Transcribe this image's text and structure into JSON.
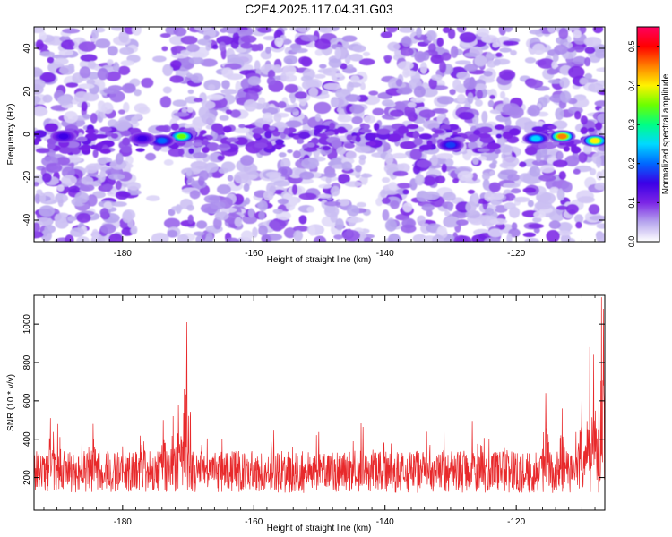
{
  "figure": {
    "title": "C2E4.2025.117.04.31.G03"
  },
  "chart_data": [
    {
      "type": "heatmap",
      "title": "C2E4.2025.117.04.31.G03",
      "xlabel": "Height of straight line (km)",
      "ylabel": "Frequency (Hz)",
      "xlim": [
        -193.5,
        -106.5
      ],
      "ylim": [
        -50,
        50
      ],
      "xticks": [
        -180,
        -160,
        -140,
        -120
      ],
      "yticks": [
        -40,
        -20,
        0,
        20,
        40
      ],
      "colorbar": {
        "label": "Normalized spectral amplitude",
        "range": [
          0,
          0.55
        ],
        "ticks": [
          0.0,
          0.1,
          0.2,
          0.3,
          0.4,
          0.5
        ],
        "colors": [
          "#ffffff",
          "#b7a6ee",
          "#7b25e6",
          "#3b00e6",
          "#0068ff",
          "#00d9ff",
          "#00ff84",
          "#6bff00",
          "#fff200",
          "#ff7f00",
          "#ff0000",
          "#ff0060"
        ]
      },
      "hotspots": [
        {
          "x": -171,
          "y": -1,
          "value": 0.35
        },
        {
          "x": -174,
          "y": -3,
          "value": 0.2
        },
        {
          "x": -177,
          "y": -2,
          "value": 0.15
        },
        {
          "x": -113,
          "y": -1,
          "value": 0.45
        },
        {
          "x": -108,
          "y": -3,
          "value": 0.4
        },
        {
          "x": -117,
          "y": -2,
          "value": 0.25
        },
        {
          "x": -130,
          "y": -5,
          "value": 0.18
        },
        {
          "x": -189,
          "y": -1,
          "value": 0.15
        }
      ]
    },
    {
      "type": "line",
      "xlabel": "Height of straight line (km)",
      "ylabel": "SNR (10 * v/v)",
      "xlim": [
        -193.5,
        -106.5
      ],
      "ylim": [
        30,
        1150
      ],
      "xticks": [
        -180,
        -160,
        -140,
        -120
      ],
      "yticks": [
        200,
        400,
        600,
        800,
        1000
      ],
      "color": "#e8292b",
      "baseline": 230,
      "noise_amplitude": 110,
      "x_step": 0.05,
      "peaks": [
        {
          "x": -170.2,
          "y": 1010
        },
        {
          "x": -170.6,
          "y": 660
        },
        {
          "x": -171.5,
          "y": 580
        },
        {
          "x": -172.3,
          "y": 520
        },
        {
          "x": -173.8,
          "y": 500
        },
        {
          "x": -191.0,
          "y": 510
        },
        {
          "x": -184.5,
          "y": 480
        },
        {
          "x": -131.0,
          "y": 470
        },
        {
          "x": -115.5,
          "y": 640
        },
        {
          "x": -113.0,
          "y": 560
        },
        {
          "x": -110.0,
          "y": 620
        },
        {
          "x": -108.8,
          "y": 880
        },
        {
          "x": -108.2,
          "y": 840
        },
        {
          "x": -107.0,
          "y": 1140
        },
        {
          "x": -106.7,
          "y": 1080
        }
      ]
    }
  ]
}
